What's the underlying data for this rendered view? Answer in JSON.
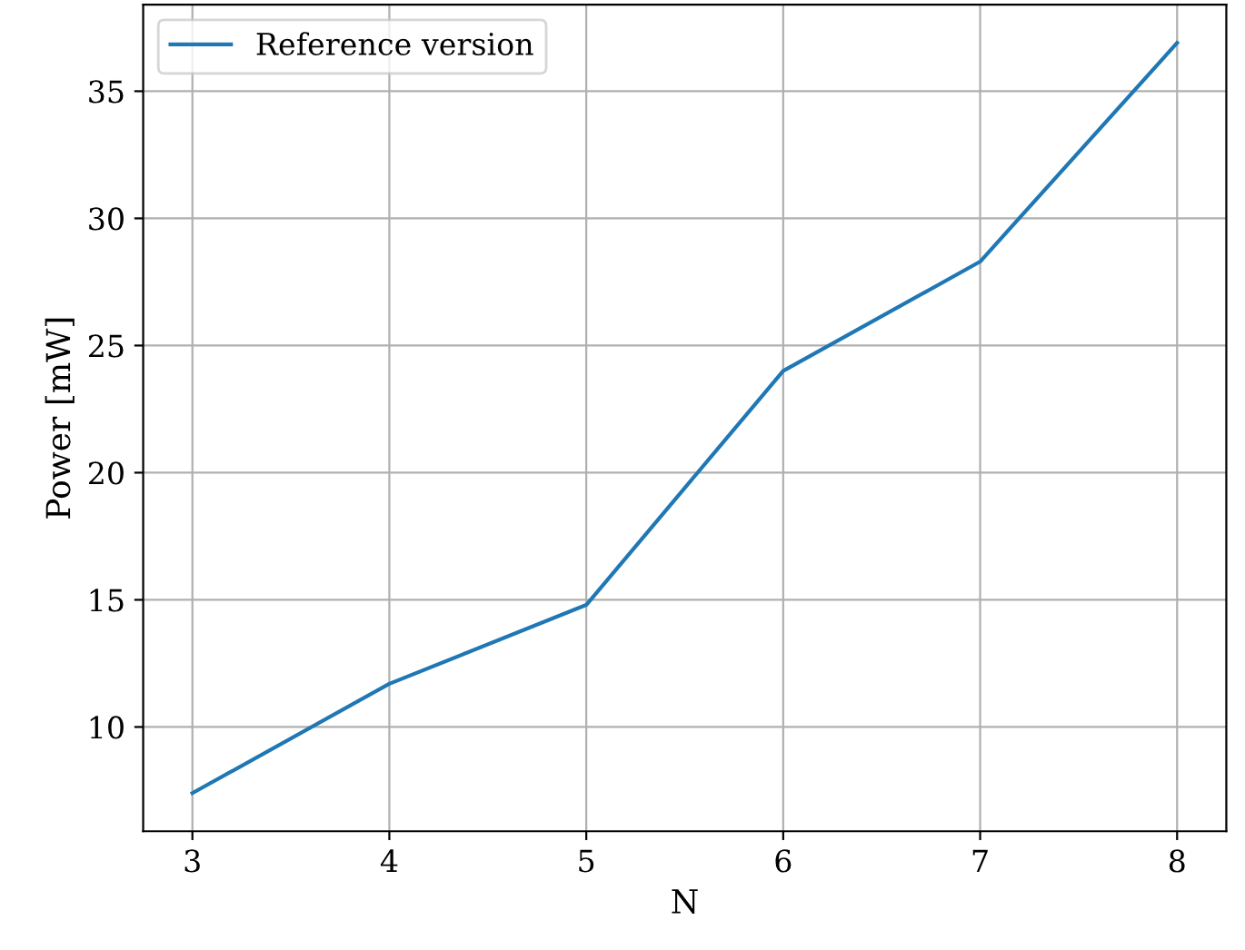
{
  "chart_data": {
    "type": "line",
    "xlabel": "N",
    "ylabel": "Power [mW]",
    "x": [
      3,
      4,
      5,
      6,
      7,
      8
    ],
    "series": [
      {
        "name": "Reference version",
        "color": "#1f77b4",
        "values": [
          7.4,
          11.7,
          14.8,
          24.0,
          28.3,
          36.9
        ]
      }
    ],
    "xlim": [
      2.75,
      8.25
    ],
    "ylim": [
      5.9,
      38.4
    ],
    "xticks": [
      3,
      4,
      5,
      6,
      7,
      8
    ],
    "yticks": [
      10,
      15,
      20,
      25,
      30,
      35
    ],
    "grid": true,
    "legend": "top left",
    "marker": "none",
    "line_style": "solid"
  }
}
